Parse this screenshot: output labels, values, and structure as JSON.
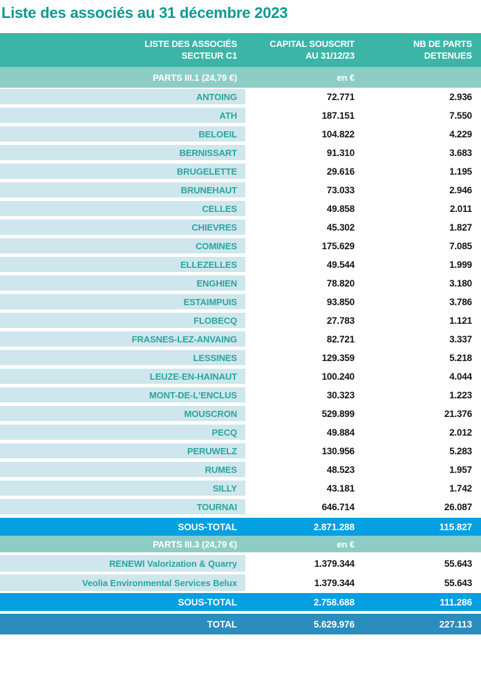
{
  "title": "Liste des associés au 31 décembre 2023",
  "colors": {
    "title_teal": "#0b9a90",
    "header_bg": "#3cb5a7",
    "subheader_bg": "#8ecdc6",
    "row_label_bg": "#cfe6ed",
    "row_label_text": "#29a79b",
    "subtotal_bg": "#04a0e1",
    "total_bg": "#2b8cbe",
    "value_text": "#141414"
  },
  "table": {
    "header": {
      "col1_line1": "LISTE DES ASSOCIÉS",
      "col1_line2": "SECTEUR C1",
      "col2_line1": "CAPITAL SOUSCRIT",
      "col2_line2": "AU 31/12/23",
      "col3_line1": "NB DE PARTS",
      "col3_line2": "DETENUES"
    },
    "section1": {
      "label": "PARTS III.1 (24,79 €)",
      "unit": "en €",
      "rows": [
        {
          "name": "ANTOING",
          "capital": "72.771",
          "parts": "2.936"
        },
        {
          "name": "ATH",
          "capital": "187.151",
          "parts": "7.550"
        },
        {
          "name": "BELOEIL",
          "capital": "104.822",
          "parts": "4.229"
        },
        {
          "name": "BERNISSART",
          "capital": "91.310",
          "parts": "3.683"
        },
        {
          "name": "BRUGELETTE",
          "capital": "29.616",
          "parts": "1.195"
        },
        {
          "name": "BRUNEHAUT",
          "capital": "73.033",
          "parts": "2.946"
        },
        {
          "name": "CELLES",
          "capital": "49.858",
          "parts": "2.011"
        },
        {
          "name": "CHIEVRES",
          "capital": "45.302",
          "parts": "1.827"
        },
        {
          "name": "COMINES",
          "capital": "175.629",
          "parts": "7.085"
        },
        {
          "name": "ELLEZELLES",
          "capital": "49.544",
          "parts": "1.999"
        },
        {
          "name": "ENGHIEN",
          "capital": "78.820",
          "parts": "3.180"
        },
        {
          "name": "ESTAIMPUIS",
          "capital": "93.850",
          "parts": "3.786"
        },
        {
          "name": "FLOBECQ",
          "capital": "27.783",
          "parts": "1.121"
        },
        {
          "name": "FRASNES-LEZ-ANVAING",
          "capital": "82.721",
          "parts": "3.337"
        },
        {
          "name": "LESSINES",
          "capital": "129.359",
          "parts": "5.218"
        },
        {
          "name": "LEUZE-EN-HAINAUT",
          "capital": "100.240",
          "parts": "4.044"
        },
        {
          "name": "MONT-DE-L'ENCLUS",
          "capital": "30.323",
          "parts": "1.223"
        },
        {
          "name": "MOUSCRON",
          "capital": "529.899",
          "parts": "21.376"
        },
        {
          "name": "PECQ",
          "capital": "49.884",
          "parts": "2.012"
        },
        {
          "name": "PERUWELZ",
          "capital": "130.956",
          "parts": "5.283"
        },
        {
          "name": "RUMES",
          "capital": "48.523",
          "parts": "1.957"
        },
        {
          "name": "SILLY",
          "capital": "43.181",
          "parts": "1.742"
        },
        {
          "name": "TOURNAI",
          "capital": "646.714",
          "parts": "26.087"
        }
      ],
      "subtotal": {
        "label": "SOUS-TOTAL",
        "capital": "2.871.288",
        "parts": "115.827"
      }
    },
    "section2": {
      "label": "PARTS III.3 (24,79 €)",
      "unit": "en €",
      "rows": [
        {
          "name": "RENEWI Valorization & Quarry",
          "capital": "1.379.344",
          "parts": "55.643"
        },
        {
          "name": "Veolia Environmental Services Belux",
          "capital": "1.379.344",
          "parts": "55.643"
        }
      ],
      "subtotal": {
        "label": "SOUS-TOTAL",
        "capital": "2.758.688",
        "parts": "111.286"
      }
    },
    "total": {
      "label": "TOTAL",
      "capital": "5.629.976",
      "parts": "227.113"
    }
  }
}
